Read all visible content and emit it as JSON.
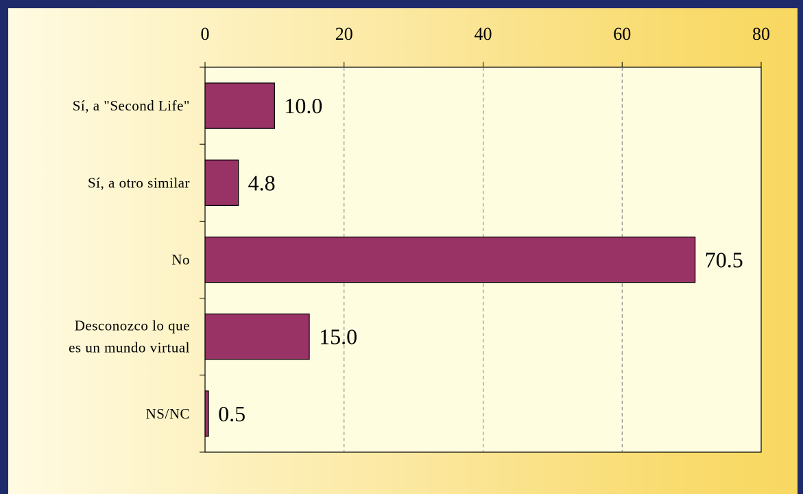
{
  "chart_data": {
    "type": "bar",
    "orientation": "horizontal",
    "title": "",
    "xlabel": "",
    "ylabel": "",
    "xlim": [
      0,
      80
    ],
    "x_ticks": [
      "0",
      "20",
      "40",
      "60",
      "80"
    ],
    "axis_position": "top",
    "grid": true,
    "categories": [
      [
        "Sí, a \"Second Life\""
      ],
      [
        "Sí, a otro similar"
      ],
      [
        "No"
      ],
      [
        "Desconozco lo que",
        "es un mundo virtual"
      ],
      [
        "NS/NC"
      ]
    ],
    "values": [
      10.0,
      4.8,
      70.5,
      15.0,
      0.5
    ],
    "data_labels": [
      "10.0",
      "4.8",
      "70.5",
      "15.0",
      "0.5"
    ]
  },
  "colors": {
    "bar": "#993366",
    "plot_background": "#fffde0",
    "border": "#1f2a6b"
  }
}
